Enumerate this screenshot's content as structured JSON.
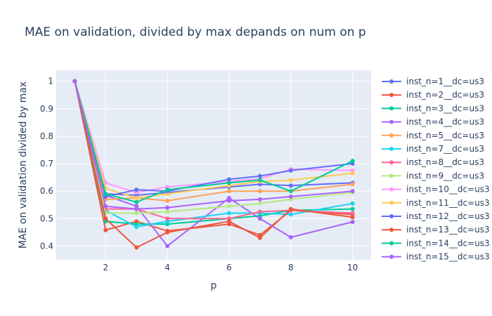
{
  "chart_data": {
    "type": "line",
    "title": "MAE on validation, divided by max depands on num on p",
    "xlabel": "p",
    "ylabel": "MAE on validation divided by max",
    "x": [
      1,
      2,
      3,
      4,
      6,
      7,
      8,
      10
    ],
    "x_ticks": [
      2,
      4,
      6,
      8,
      10
    ],
    "y_ticks": [
      0.4,
      0.5,
      0.6,
      0.7,
      0.8,
      0.9,
      1
    ],
    "xlim": [
      0.4,
      10.6
    ],
    "ylim": [
      0.35,
      1.04
    ],
    "grid": true,
    "legend_position": "right",
    "series": [
      {
        "name": "inst_n=1__dc=us3",
        "color": "#636efa",
        "values": [
          1,
          0.59,
          0.585,
          0.595,
          0.615,
          0.625,
          0.62,
          0.63
        ]
      },
      {
        "name": "inst_n=2__dc=us3",
        "color": "#ef553b",
        "values": [
          1,
          0.458,
          0.49,
          0.455,
          0.48,
          0.44,
          0.53,
          0.515
        ]
      },
      {
        "name": "inst_n=3__dc=us3",
        "color": "#00cc96",
        "values": [
          1,
          0.49,
          0.48,
          0.48,
          0.5,
          0.51,
          0.53,
          0.535
        ]
      },
      {
        "name": "inst_n=4__dc=us3",
        "color": "#ab63fa",
        "values": [
          1,
          0.585,
          0.545,
          0.4,
          0.575,
          0.5,
          0.432,
          0.488
        ]
      },
      {
        "name": "inst_n=5__dc=us3",
        "color": "#ffa15a",
        "values": [
          1,
          0.57,
          0.575,
          0.565,
          0.6,
          0.6,
          0.6,
          0.625
        ]
      },
      {
        "name": "inst_n=7__dc=us3",
        "color": "#19d3f3",
        "values": [
          1,
          0.53,
          0.47,
          0.49,
          0.52,
          0.52,
          0.515,
          0.555
        ]
      },
      {
        "name": "inst_n=8__dc=us3",
        "color": "#ff6692",
        "values": [
          1,
          0.535,
          0.535,
          0.5,
          0.5,
          0.525,
          0.53,
          0.52
        ]
      },
      {
        "name": "inst_n=9__dc=us3",
        "color": "#b6e880",
        "values": [
          1,
          0.52,
          0.52,
          0.525,
          0.545,
          0.555,
          0.57,
          0.595
        ]
      },
      {
        "name": "inst_n=10__dc=us3",
        "color": "#ff97ff",
        "values": [
          1,
          0.63,
          0.595,
          0.615,
          0.635,
          0.645,
          0.68,
          0.675
        ]
      },
      {
        "name": "inst_n=11__dc=us3",
        "color": "#fecb52",
        "values": [
          1,
          0.61,
          0.575,
          0.59,
          0.62,
          0.635,
          0.64,
          0.665
        ]
      },
      {
        "name": "inst_n=12__dc=us3",
        "color": "#636efa",
        "values": [
          1,
          0.58,
          0.605,
          0.6,
          0.643,
          0.655,
          0.675,
          0.7
        ]
      },
      {
        "name": "inst_n=13__dc=us3",
        "color": "#ef553b",
        "values": [
          1,
          0.5,
          0.395,
          0.45,
          0.49,
          0.43,
          0.535,
          0.505
        ]
      },
      {
        "name": "inst_n=14__dc=us3",
        "color": "#00cc96",
        "values": [
          1,
          0.59,
          0.56,
          0.605,
          0.63,
          0.64,
          0.6,
          0.71
        ]
      },
      {
        "name": "inst_n=15__dc=us3",
        "color": "#ab63fa",
        "values": [
          1,
          0.545,
          0.535,
          0.54,
          0.565,
          0.57,
          0.58,
          0.6
        ]
      }
    ]
  }
}
